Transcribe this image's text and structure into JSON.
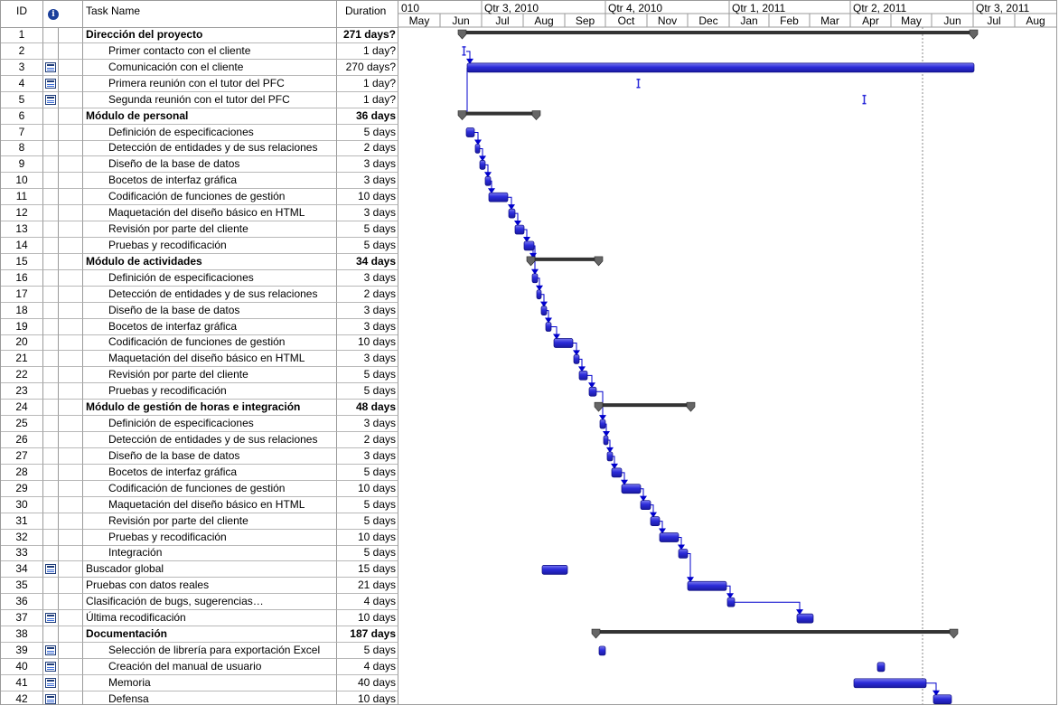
{
  "columns": {
    "id": "ID",
    "info_icon": "i",
    "task_name": "Task Name",
    "duration": "Duration"
  },
  "timescale": {
    "quarters": [
      {
        "label": "010"
      },
      {
        "label": "Qtr 3, 2010"
      },
      {
        "label": "Qtr 4, 2010"
      },
      {
        "label": "Qtr 1, 2011"
      },
      {
        "label": "Qtr 2, 2011"
      },
      {
        "label": "Qtr 3, 2011"
      }
    ],
    "months": [
      "May",
      "Jun",
      "Jul",
      "Aug",
      "Sep",
      "Oct",
      "Nov",
      "Dec",
      "Jan",
      "Feb",
      "Mar",
      "Apr",
      "May",
      "Jun",
      "Jul",
      "Aug"
    ]
  },
  "tasks": [
    {
      "id": "1",
      "name": "Dirección del proyecto",
      "duration": "271 days?",
      "summary": true,
      "indent": 0
    },
    {
      "id": "2",
      "name": "Primer contacto con el cliente",
      "duration": "1 day?",
      "indent": 1
    },
    {
      "id": "3",
      "name": "Comunicación con el cliente",
      "duration": "270 days?",
      "indent": 1,
      "icon": "recurring-task-icon"
    },
    {
      "id": "4",
      "name": "Primera reunión con el tutor del PFC",
      "duration": "1 day?",
      "indent": 1,
      "icon": "recurring-task-icon"
    },
    {
      "id": "5",
      "name": "Segunda reunión con el tutor del PFC",
      "duration": "1 day?",
      "indent": 1,
      "icon": "recurring-task-icon"
    },
    {
      "id": "6",
      "name": "Módulo de personal",
      "duration": "36 days",
      "summary": true,
      "indent": 0
    },
    {
      "id": "7",
      "name": "Definición de especificaciones",
      "duration": "5 days",
      "indent": 1
    },
    {
      "id": "8",
      "name": "Detección de entidades y de sus relaciones",
      "duration": "2 days",
      "indent": 1
    },
    {
      "id": "9",
      "name": "Diseño de la base de datos",
      "duration": "3 days",
      "indent": 1
    },
    {
      "id": "10",
      "name": "Bocetos de interfaz gráfica",
      "duration": "3 days",
      "indent": 1
    },
    {
      "id": "11",
      "name": "Codificación de funciones de gestión",
      "duration": "10 days",
      "indent": 1
    },
    {
      "id": "12",
      "name": "Maquetación del diseño básico en HTML",
      "duration": "3 days",
      "indent": 1
    },
    {
      "id": "13",
      "name": "Revisión por parte del cliente",
      "duration": "5 days",
      "indent": 1
    },
    {
      "id": "14",
      "name": "Pruebas y recodificación",
      "duration": "5 days",
      "indent": 1
    },
    {
      "id": "15",
      "name": "Módulo de actividades",
      "duration": "34 days",
      "summary": true,
      "indent": 0
    },
    {
      "id": "16",
      "name": "Definición de especificaciones",
      "duration": "3 days",
      "indent": 1
    },
    {
      "id": "17",
      "name": "Detección de entidades y de sus relaciones",
      "duration": "2 days",
      "indent": 1
    },
    {
      "id": "18",
      "name": "Diseño de la base de datos",
      "duration": "3 days",
      "indent": 1
    },
    {
      "id": "19",
      "name": "Bocetos de interfaz gráfica",
      "duration": "3 days",
      "indent": 1
    },
    {
      "id": "20",
      "name": "Codificación de funciones de gestión",
      "duration": "10 days",
      "indent": 1
    },
    {
      "id": "21",
      "name": "Maquetación del diseño básico en HTML",
      "duration": "3 days",
      "indent": 1
    },
    {
      "id": "22",
      "name": "Revisión por parte del cliente",
      "duration": "5 days",
      "indent": 1
    },
    {
      "id": "23",
      "name": "Pruebas y recodificación",
      "duration": "5 days",
      "indent": 1
    },
    {
      "id": "24",
      "name": "Módulo de gestión de horas e integración",
      "duration": "48 days",
      "summary": true,
      "indent": 0
    },
    {
      "id": "25",
      "name": "Definición de especificaciones",
      "duration": "3 days",
      "indent": 1
    },
    {
      "id": "26",
      "name": "Detección de entidades y de sus relaciones",
      "duration": "2 days",
      "indent": 1
    },
    {
      "id": "27",
      "name": "Diseño de la base de datos",
      "duration": "3 days",
      "indent": 1
    },
    {
      "id": "28",
      "name": "Bocetos de interfaz gráfica",
      "duration": "5 days",
      "indent": 1
    },
    {
      "id": "29",
      "name": "Codificación de funciones de gestión",
      "duration": "10 days",
      "indent": 1
    },
    {
      "id": "30",
      "name": "Maquetación del diseño básico en HTML",
      "duration": "5 days",
      "indent": 1
    },
    {
      "id": "31",
      "name": "Revisión por parte del cliente",
      "duration": "5 days",
      "indent": 1
    },
    {
      "id": "32",
      "name": "Pruebas y recodificación",
      "duration": "10 days",
      "indent": 1
    },
    {
      "id": "33",
      "name": "Integración",
      "duration": "5 days",
      "indent": 1
    },
    {
      "id": "34",
      "name": "Buscador global",
      "duration": "15 days",
      "indent": 0,
      "icon": "recurring-task-icon"
    },
    {
      "id": "35",
      "name": "Pruebas con datos reales",
      "duration": "21 days",
      "indent": 0
    },
    {
      "id": "36",
      "name": "Clasificación de bugs, sugerencias…",
      "duration": "4 days",
      "indent": 0
    },
    {
      "id": "37",
      "name": "Última recodificación",
      "duration": "10 days",
      "indent": 0,
      "icon": "recurring-task-icon"
    },
    {
      "id": "38",
      "name": "Documentación",
      "duration": "187 days",
      "summary": true,
      "indent": 0
    },
    {
      "id": "39",
      "name": "Selección de librería para exportación Excel",
      "duration": "5 days",
      "indent": 1,
      "icon": "recurring-task-icon"
    },
    {
      "id": "40",
      "name": "Creación del manual de usuario",
      "duration": "4 days",
      "indent": 1,
      "icon": "recurring-task-icon"
    },
    {
      "id": "41",
      "name": "Memoria",
      "duration": "40 days",
      "indent": 1,
      "icon": "recurring-task-icon"
    },
    {
      "id": "42",
      "name": "Defensa",
      "duration": "10 days",
      "indent": 1,
      "icon": "recurring-task-icon"
    }
  ],
  "colors": {
    "bar": "#2b2bd9",
    "bar_light": "#7a7af0",
    "summary": "#333333",
    "link": "#0000cc",
    "grid": "#9a9a9a",
    "status_line": "#888888"
  }
}
